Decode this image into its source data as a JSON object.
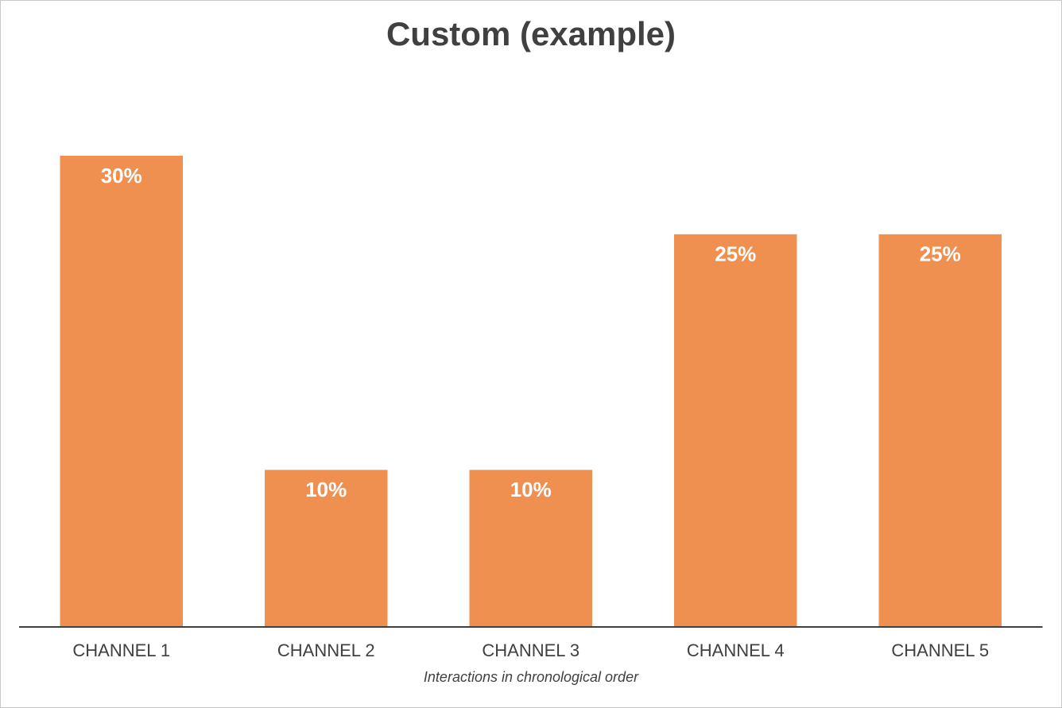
{
  "chart_data": {
    "type": "bar",
    "title": "Custom (example)",
    "categories": [
      "CHANNEL 1",
      "CHANNEL 2",
      "CHANNEL 3",
      "CHANNEL 4",
      "CHANNEL 5"
    ],
    "values": [
      30,
      10,
      10,
      25,
      25
    ],
    "value_labels": [
      "30%",
      "10%",
      "10%",
      "25%",
      "25%"
    ],
    "color": "#ef9051",
    "x_label": "Interactions in chronological order"
  }
}
